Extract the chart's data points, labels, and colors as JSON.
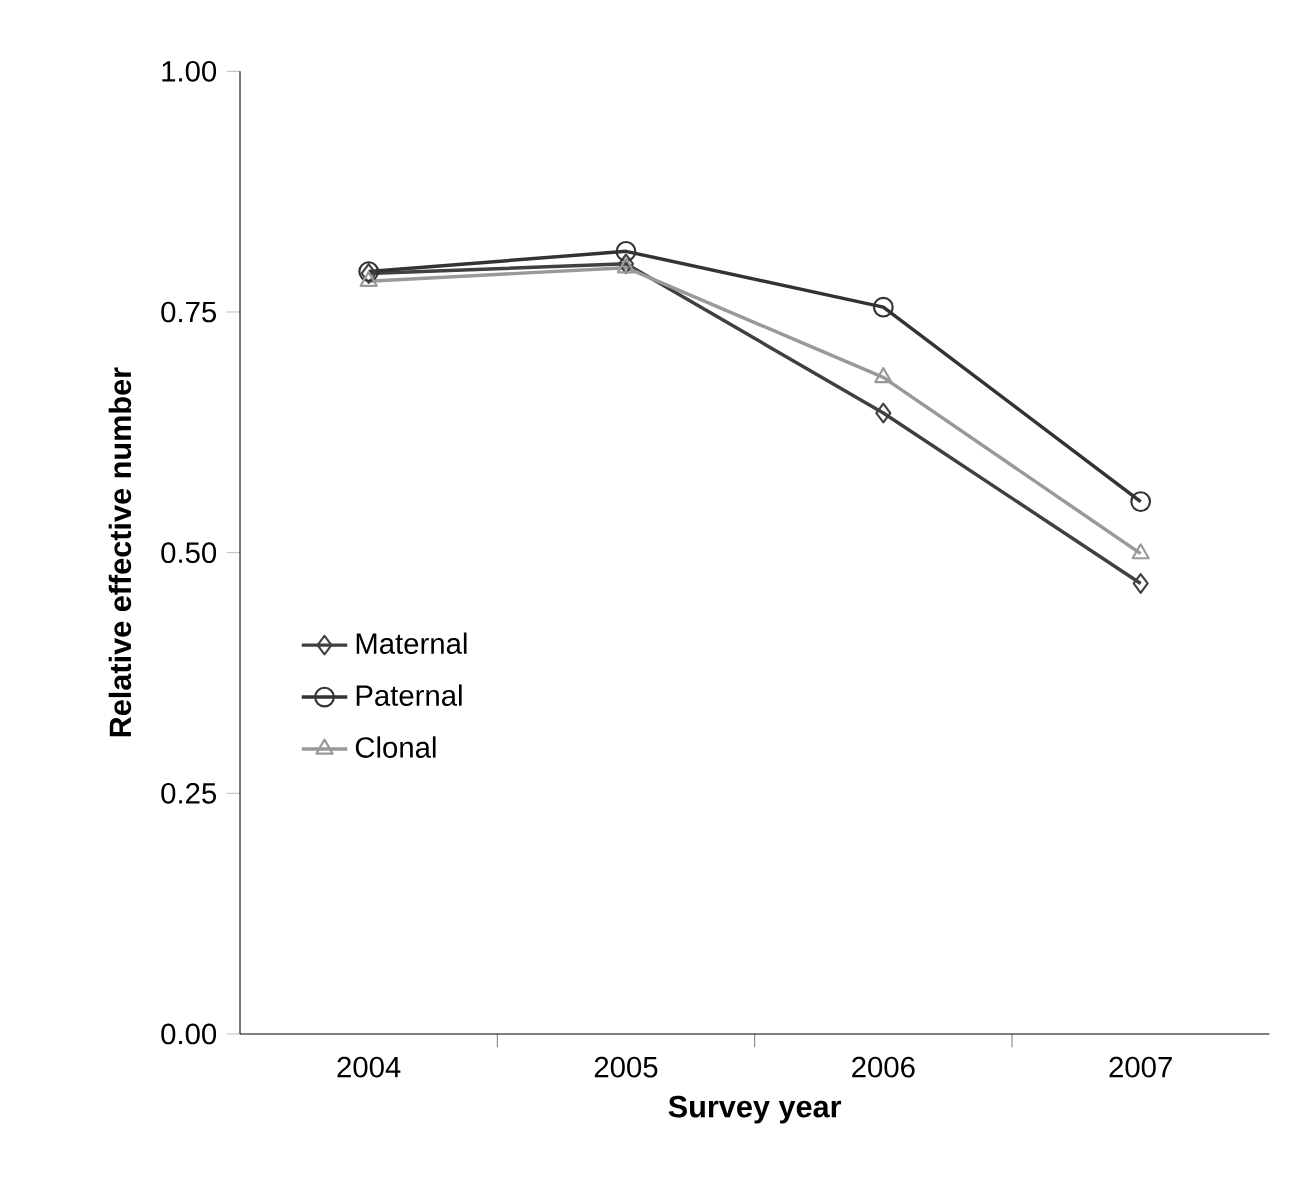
{
  "chart_data": {
    "type": "line",
    "xlabel": "Survey year",
    "ylabel": "Relative effective number",
    "categories": [
      "2004",
      "2005",
      "2006",
      "2007"
    ],
    "series": [
      {
        "name": "Maternal",
        "color": "#404040",
        "marker": "diamond",
        "values": [
          0.79,
          0.8,
          0.645,
          0.468
        ]
      },
      {
        "name": "Paternal",
        "color": "#333333",
        "marker": "circle",
        "values": [
          0.792,
          0.813,
          0.755,
          0.553
        ]
      },
      {
        "name": "Clonal",
        "color": "#999999",
        "marker": "triangle",
        "values": [
          0.782,
          0.796,
          0.682,
          0.499
        ]
      }
    ],
    "ylim": [
      0,
      1
    ],
    "yticks": [
      {
        "value": 0,
        "label": "0.00"
      },
      {
        "value": 0.25,
        "label": "0.25"
      },
      {
        "value": 0.5,
        "label": "0.50"
      },
      {
        "value": 0.75,
        "label": "0.75"
      },
      {
        "value": 1,
        "label": "1.00"
      }
    ],
    "legend": "left",
    "grid": false,
    "line_style": "solid"
  }
}
